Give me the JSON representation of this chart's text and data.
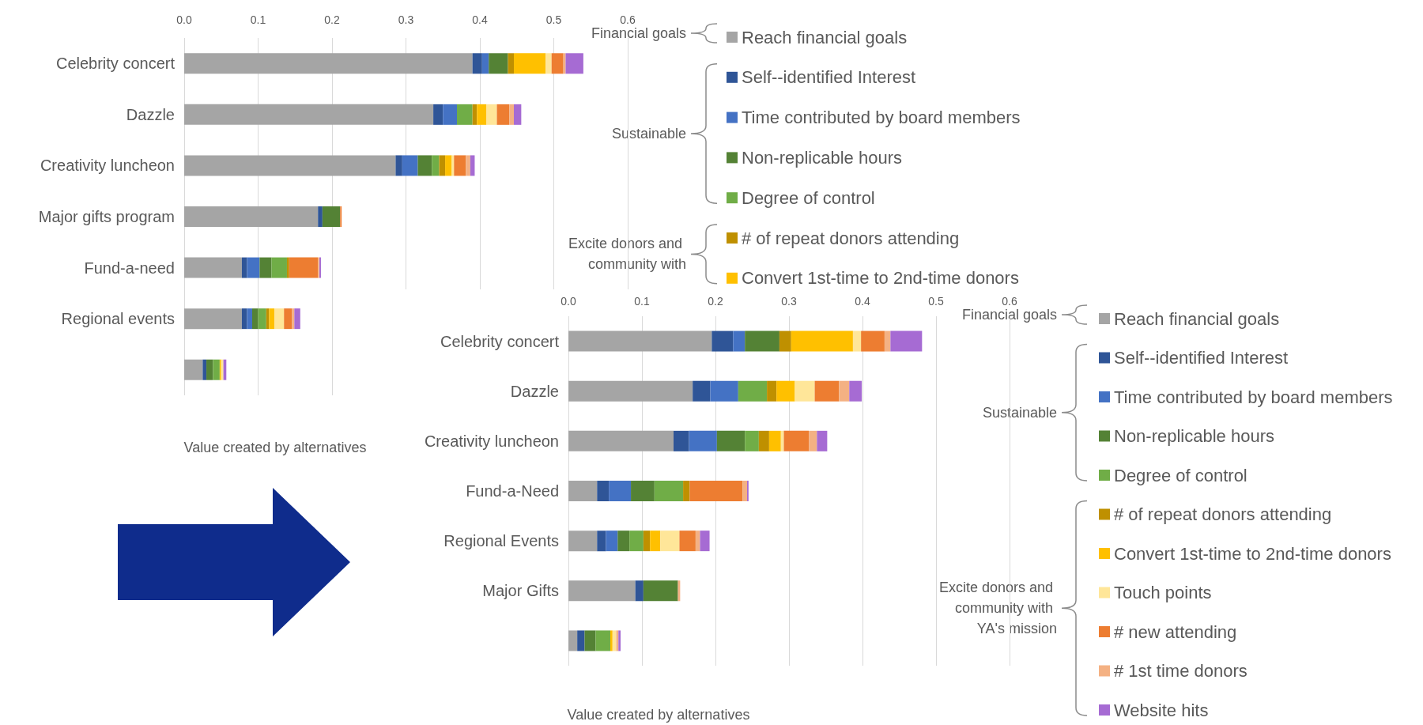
{
  "chart_data": [
    {
      "type": "bar",
      "orientation": "horizontal",
      "stacked": true,
      "xlabel": "Value created by alternatives",
      "annotations": [
        "Financial goals",
        "Sustainable",
        "Excite donors and community with"
      ],
      "categories": [
        "Celebrity concert",
        "Dazzle",
        "Creativity luncheon",
        "Major gifts program",
        "Fund-a-need",
        "Regional events",
        null
      ],
      "series": [
        {
          "name": "Reach financial goals",
          "color": "#a5a5a5",
          "values": [
            0.39,
            0.337,
            0.286,
            0.181,
            0.078,
            0.078,
            0.025
          ]
        },
        {
          "name": "Self--identified Interest",
          "color": "#2f5597",
          "values": [
            0.013,
            0.013,
            0.009,
            0.006,
            0.007,
            0.007,
            0.005
          ]
        },
        {
          "name": "Time contributed by board members",
          "color": "#4472c4",
          "values": [
            0.009,
            0.019,
            0.021,
            0,
            0.017,
            0.007,
            0
          ]
        },
        {
          "name": "Non-replicable hours",
          "color": "#548235",
          "values": [
            0.026,
            0,
            0.019,
            0.024,
            0.016,
            0.008,
            0.009
          ]
        },
        {
          "name": "Degree of control",
          "color": "#70ad47",
          "values": [
            0,
            0.021,
            0.01,
            0,
            0.021,
            0.011,
            0.009
          ]
        },
        {
          "name": "# of repeat donors attending",
          "color": "#bf9000",
          "values": [
            0.008,
            0.006,
            0.008,
            0,
            0.003,
            0.004,
            0
          ]
        },
        {
          "name": "Convert 1st-time to 2nd-time donors",
          "color": "#ffc000",
          "values": [
            0.043,
            0.013,
            0.009,
            0,
            0,
            0.007,
            0.002
          ]
        },
        {
          "color": "#ffe699",
          "values": [
            0.008,
            0.014,
            0.003,
            0,
            0,
            0.013,
            0.003
          ]
        },
        {
          "color": "#ed7d31",
          "values": [
            0.016,
            0.017,
            0.016,
            0.002,
            0.039,
            0.011,
            0
          ]
        },
        {
          "color": "#f4b183",
          "values": [
            0.003,
            0.006,
            0.006,
            0,
            0.002,
            0.003,
            0
          ]
        },
        {
          "color": "#a66bd3",
          "values": [
            0.024,
            0.01,
            0.006,
            0,
            0.002,
            0.008,
            0.004
          ]
        }
      ],
      "xlim": [
        0,
        0.6
      ],
      "xticks": [
        {
          "value": 0,
          "label": "0.0"
        },
        {
          "value": 0.1,
          "label": "0.1"
        },
        {
          "value": 0.2,
          "label": "0.2"
        },
        {
          "value": 0.3,
          "label": "0.3"
        },
        {
          "value": 0.4,
          "label": "0.4"
        },
        {
          "value": 0.5,
          "label": "0.5"
        },
        {
          "value": 0.6,
          "label": "0.6"
        }
      ],
      "grid": "x",
      "legend": "right"
    },
    {
      "type": "bar",
      "orientation": "horizontal",
      "stacked": true,
      "xlabel": "Value created by alternatives",
      "annotations": [
        "Financial goals",
        "Sustainable",
        "Excite donors and community with YA's mission"
      ],
      "categories": [
        "Celebrity concert",
        "Dazzle",
        "Creativity luncheon",
        "Fund-a-Need",
        "Regional Events",
        "Major Gifts",
        null
      ],
      "series": [
        {
          "name": "Reach financial goals",
          "color": "#a5a5a5",
          "values": [
            0.195,
            0.169,
            0.143,
            0.039,
            0.039,
            0.091,
            0.012
          ]
        },
        {
          "name": "Self--identified Interest",
          "color": "#2f5597",
          "values": [
            0.029,
            0.024,
            0.021,
            0.016,
            0.012,
            0.011,
            0.01
          ]
        },
        {
          "name": "Time contributed by board members",
          "color": "#4472c4",
          "values": [
            0.016,
            0.038,
            0.038,
            0.03,
            0.016,
            0,
            0
          ]
        },
        {
          "name": "Non-replicable hours",
          "color": "#548235",
          "values": [
            0.047,
            0,
            0.038,
            0.032,
            0.016,
            0.047,
            0.015
          ]
        },
        {
          "name": "Degree of control",
          "color": "#70ad47",
          "values": [
            0,
            0.039,
            0.019,
            0.039,
            0.019,
            0,
            0.02
          ]
        },
        {
          "name": "# of repeat donors attending",
          "color": "#bf9000",
          "values": [
            0.016,
            0.013,
            0.014,
            0.009,
            0.009,
            0,
            0
          ]
        },
        {
          "name": "Convert 1st-time to 2nd-time donors",
          "color": "#ffc000",
          "values": [
            0.084,
            0.025,
            0.016,
            0,
            0.014,
            0,
            0.003
          ]
        },
        {
          "name": "Touch points",
          "color": "#ffe699",
          "values": [
            0.011,
            0.027,
            0.004,
            0,
            0.026,
            0,
            0.005
          ]
        },
        {
          "name": "# new attending",
          "color": "#ed7d31",
          "values": [
            0.032,
            0.033,
            0.034,
            0.072,
            0.022,
            0,
            0
          ]
        },
        {
          "name": "# 1st time donors",
          "color": "#f4b183",
          "values": [
            0.008,
            0.014,
            0.011,
            0.006,
            0.006,
            0.003,
            0.003
          ]
        },
        {
          "name": "Website hits",
          "color": "#a66bd3",
          "values": [
            0.043,
            0.017,
            0.014,
            0.002,
            0.013,
            0,
            0.003
          ]
        }
      ],
      "xlim": [
        0,
        0.6
      ],
      "xticks": [
        {
          "value": 0,
          "label": "0.0"
        },
        {
          "value": 0.1,
          "label": "0.1"
        },
        {
          "value": 0.2,
          "label": "0.2"
        },
        {
          "value": 0.3,
          "label": "0.3"
        },
        {
          "value": 0.4,
          "label": "0.4"
        },
        {
          "value": 0.5,
          "label": "0.5"
        },
        {
          "value": 0.6,
          "label": "0.6"
        }
      ],
      "grid": "x",
      "legend": "right"
    }
  ]
}
